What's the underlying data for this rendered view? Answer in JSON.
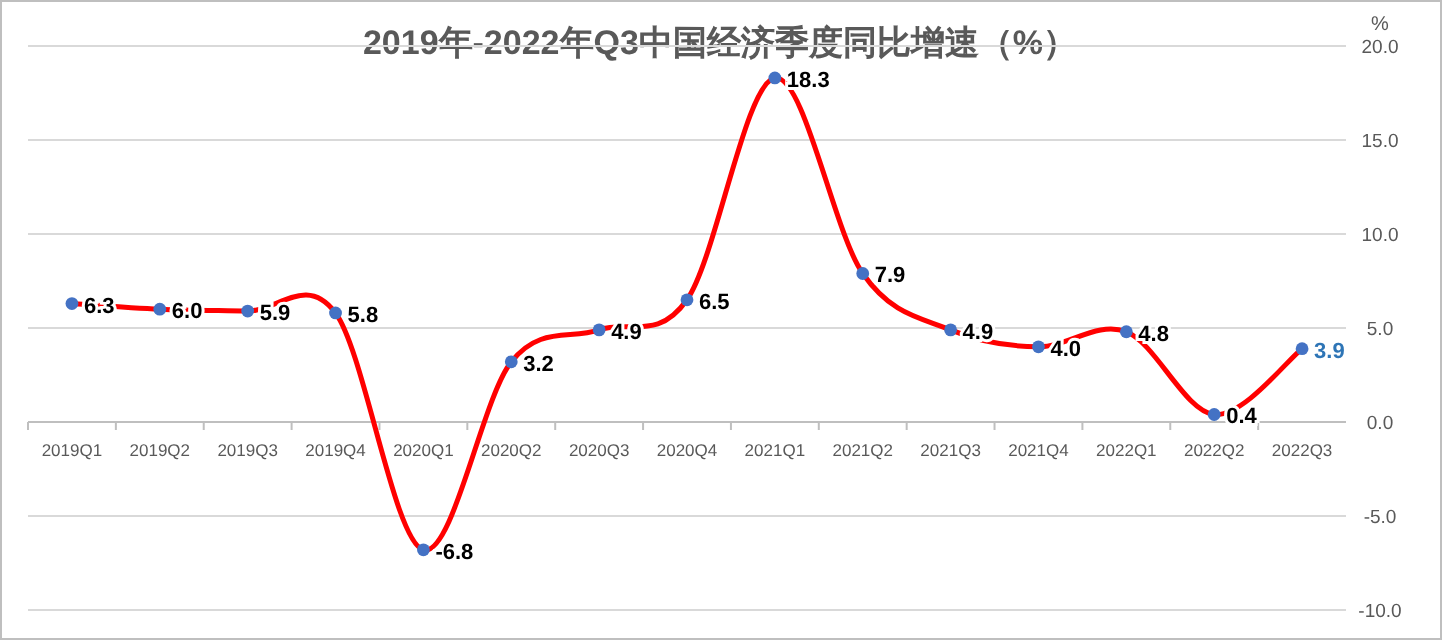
{
  "chart_data": {
    "type": "line",
    "title": "2019年-2022年Q3中国经济季度同比增速（%）",
    "ylabel": "%",
    "categories": [
      "2019Q1",
      "2019Q2",
      "2019Q3",
      "2019Q4",
      "2020Q1",
      "2020Q2",
      "2020Q3",
      "2020Q4",
      "2021Q1",
      "2021Q2",
      "2021Q3",
      "2021Q4",
      "2022Q1",
      "2022Q2",
      "2022Q3"
    ],
    "series": [
      {
        "color": "#ff0000",
        "values": [
          6.3,
          6.0,
          5.9,
          5.8,
          -6.8,
          3.2,
          4.9,
          6.5,
          18.3,
          7.9,
          4.9,
          4.0,
          4.8,
          0.4,
          3.9
        ],
        "value_labels": [
          "6.3",
          "6.0",
          "5.9",
          "5.8",
          "-6.8",
          "3.2",
          "4.9",
          "6.5",
          "18.3",
          "7.9",
          "4.9",
          "4.0",
          "4.8",
          "0.4",
          "3.9"
        ]
      }
    ],
    "ylim": [
      -10,
      20
    ],
    "yticks": [
      {
        "value": -10,
        "label": "-10.0"
      },
      {
        "value": -5,
        "label": "-5.0"
      },
      {
        "value": 0,
        "label": "0.0"
      },
      {
        "value": 5,
        "label": "5.0"
      },
      {
        "value": 10,
        "label": "10.0"
      },
      {
        "value": 15,
        "label": "15.0"
      },
      {
        "value": 20,
        "label": "20.0"
      }
    ],
    "grid": "y",
    "marker": "circle"
  }
}
